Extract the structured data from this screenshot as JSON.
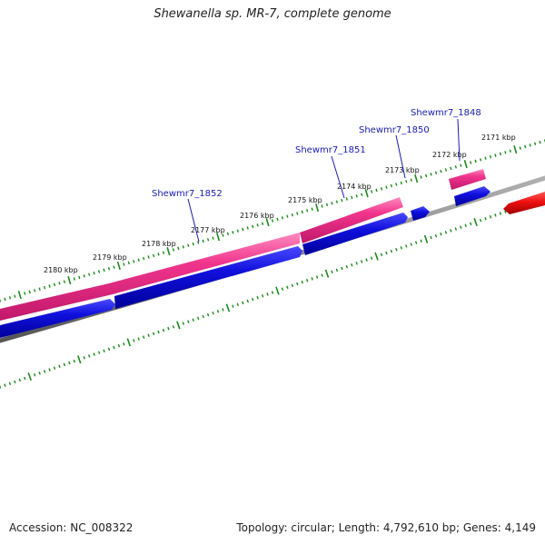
{
  "title": "Shewanella sp. MR-7, complete genome",
  "footer": {
    "accession": "Accession: NC_008322",
    "topology": "Topology: circular; Length: 4,792,610 bp; Genes: 4,149"
  },
  "kbp_labels": [
    "2171 kbp",
    "2172 kbp",
    "2173 kbp",
    "2174 kbp",
    "2175 kbp",
    "2176 kbp",
    "2177 kbp",
    "2178 kbp",
    "2179 kbp",
    "2180 kbp"
  ],
  "gene_labels": [
    "Shewmr7_1848",
    "Shewmr7_1850",
    "Shewmr7_1851",
    "Shewmr7_1852"
  ],
  "colors": {
    "forward_cds": "#f0348c",
    "reverse_cds": "#1010dd",
    "other_feature": "#ee1111",
    "backbone": "#888888",
    "ticks": "#1a8a1a",
    "gene_label": "#1a1ab8"
  }
}
